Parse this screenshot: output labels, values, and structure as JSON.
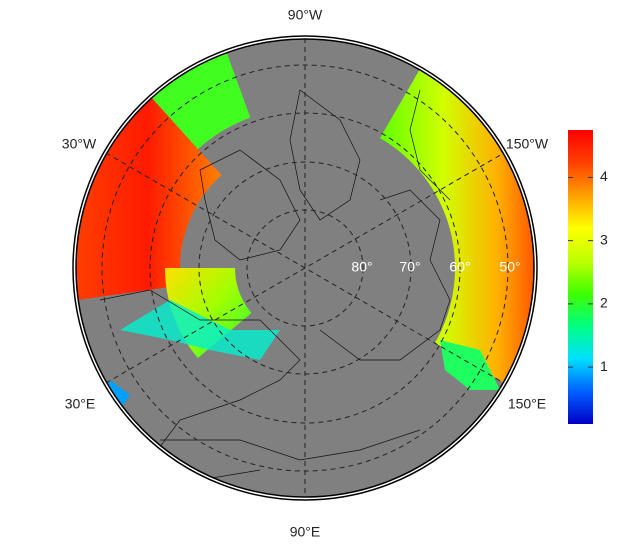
{
  "map": {
    "longitude_labels": {
      "top": "90°W",
      "upper_left": "30°W",
      "upper_right": "150°W",
      "lower_left": "30°E",
      "lower_right": "150°E",
      "bottom": "90°E"
    },
    "latitude_labels": [
      "80°",
      "70°",
      "60°",
      "50°"
    ],
    "colorbar": {
      "lim": [
        0.1,
        4.75
      ],
      "ticks": [
        1,
        2,
        3,
        4
      ],
      "colors": [
        "#0000c8",
        "#0060ff",
        "#00e0ff",
        "#00ff80",
        "#40ff00",
        "#c0ff00",
        "#ffff00",
        "#ffa000",
        "#ff4000",
        "#ff0000"
      ]
    }
  }
}
